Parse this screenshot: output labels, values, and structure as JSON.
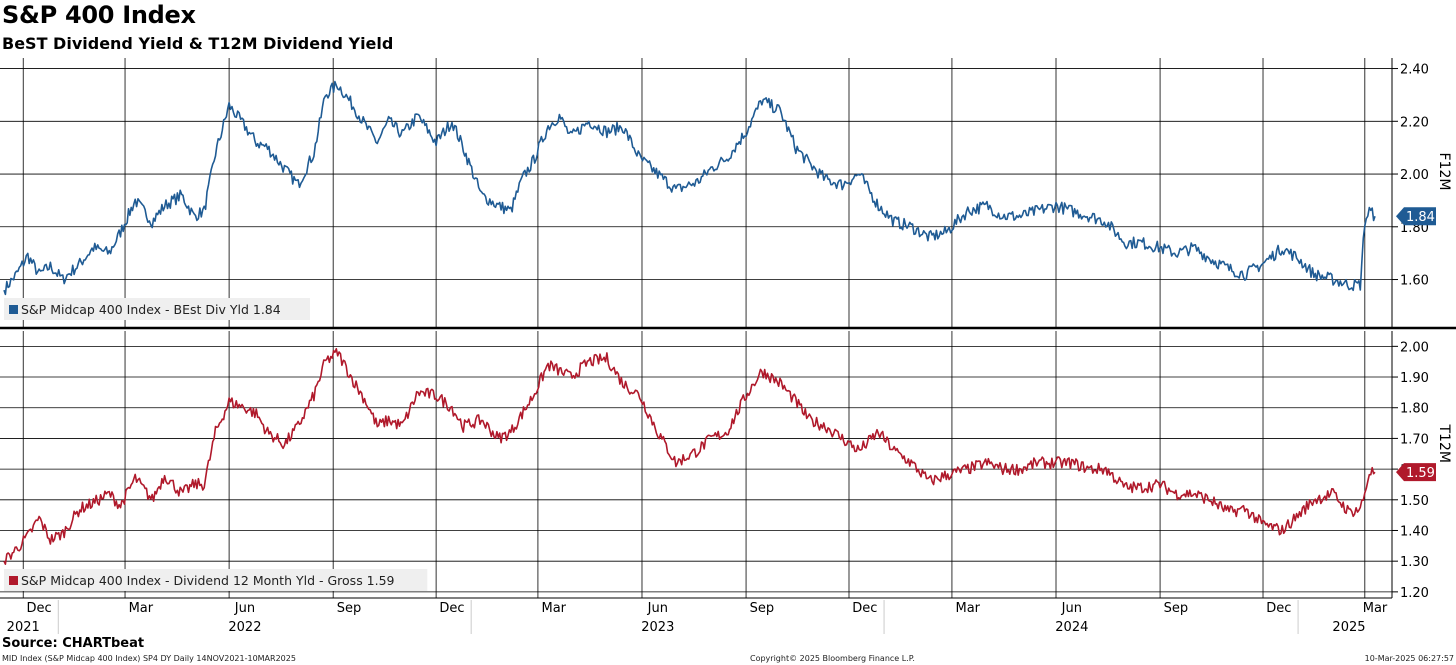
{
  "header": {
    "title": "S&P 400 Index",
    "subtitle": "BeST Dividend Yield & T12M Dividend Yield"
  },
  "footer": {
    "source": "Source: CHARTbeat",
    "left": "MID Index (S&P Midcap 400 Index) SP4 DY  Daily 14NOV2021-10MAR2025",
    "center": "Copyright© 2025 Bloomberg Finance L.P.",
    "right": "10-Mar-2025 06:27:57"
  },
  "colors": {
    "blue": "#1f5b94",
    "red": "#b0192b",
    "grid": "#000000"
  },
  "chart_data": [
    {
      "type": "line",
      "panel": "top",
      "axis_title": "F12M",
      "ylim": [
        1.42,
        2.44
      ],
      "yticks": [
        "2.40",
        "2.20",
        "2.00",
        "1.80",
        "1.60"
      ],
      "legend": "S&P Midcap 400 Index - BEst Div Yld 1.84",
      "last_value_label": "1.84",
      "series": [
        {
          "name": "S&P Midcap 400 Index - BEst Div Yld",
          "color": "#1f5b94",
          "x": [
            "2021-11-14",
            "2021-11-25",
            "2021-12-05",
            "2021-12-15",
            "2021-12-25",
            "2022-01-05",
            "2022-01-20",
            "2022-02-01",
            "2022-02-15",
            "2022-02-25",
            "2022-03-10",
            "2022-03-25",
            "2022-04-05",
            "2022-04-20",
            "2022-05-01",
            "2022-05-10",
            "2022-05-20",
            "2022-06-01",
            "2022-06-15",
            "2022-06-25",
            "2022-07-05",
            "2022-07-20",
            "2022-08-01",
            "2022-08-15",
            "2022-08-25",
            "2022-09-05",
            "2022-09-20",
            "2022-09-30",
            "2022-10-10",
            "2022-10-20",
            "2022-11-01",
            "2022-11-15",
            "2022-12-01",
            "2022-12-15",
            "2022-12-25",
            "2023-01-10",
            "2023-01-25",
            "2023-02-05",
            "2023-02-15",
            "2023-02-25",
            "2023-03-10",
            "2023-03-20",
            "2023-03-30",
            "2023-04-15",
            "2023-05-01",
            "2023-05-15",
            "2023-05-30",
            "2023-06-15",
            "2023-07-01",
            "2023-07-20",
            "2023-08-01",
            "2023-08-15",
            "2023-09-01",
            "2023-09-15",
            "2023-10-01",
            "2023-10-15",
            "2023-10-27",
            "2023-11-10",
            "2023-11-25",
            "2023-12-10",
            "2023-12-27",
            "2024-01-10",
            "2024-01-25",
            "2024-02-10",
            "2024-02-25",
            "2024-03-15",
            "2024-04-01",
            "2024-04-15",
            "2024-05-01",
            "2024-05-15",
            "2024-06-01",
            "2024-06-15",
            "2024-07-01",
            "2024-07-15",
            "2024-08-01",
            "2024-08-15",
            "2024-09-01",
            "2024-09-15",
            "2024-10-01",
            "2024-10-15",
            "2024-11-01",
            "2024-11-15",
            "2024-12-01",
            "2024-12-18",
            "2025-01-01",
            "2025-01-15",
            "2025-02-01",
            "2025-02-15",
            "2025-02-25",
            "2025-03-01",
            "2025-03-05",
            "2025-03-10"
          ],
          "y": [
            1.56,
            1.62,
            1.69,
            1.62,
            1.65,
            1.6,
            1.66,
            1.72,
            1.7,
            1.78,
            1.9,
            1.82,
            1.88,
            1.92,
            1.84,
            1.86,
            2.08,
            2.26,
            2.18,
            2.12,
            2.1,
            2.02,
            1.96,
            2.08,
            2.3,
            2.34,
            2.25,
            2.18,
            2.12,
            2.2,
            2.15,
            2.22,
            2.12,
            2.2,
            2.1,
            1.92,
            1.88,
            1.86,
            1.98,
            2.05,
            2.18,
            2.22,
            2.14,
            2.2,
            2.16,
            2.18,
            2.06,
            2.0,
            1.94,
            1.97,
            2.02,
            2.06,
            2.16,
            2.28,
            2.24,
            2.1,
            2.04,
            1.98,
            1.96,
            2.0,
            1.88,
            1.82,
            1.8,
            1.76,
            1.78,
            1.86,
            1.88,
            1.84,
            1.84,
            1.86,
            1.88,
            1.86,
            1.84,
            1.82,
            1.74,
            1.74,
            1.72,
            1.7,
            1.72,
            1.68,
            1.64,
            1.62,
            1.66,
            1.72,
            1.68,
            1.62,
            1.6,
            1.58,
            1.58,
            1.82,
            1.86,
            1.84
          ]
        }
      ]
    },
    {
      "type": "line",
      "panel": "bottom",
      "axis_title": "T12M",
      "ylim": [
        1.18,
        2.05
      ],
      "yticks": [
        "2.00",
        "1.90",
        "1.80",
        "1.70",
        "1.60",
        "1.50",
        "1.40",
        "1.30",
        "1.20"
      ],
      "legend": "S&P Midcap 400 Index - Dividend 12 Month Yld - Gross 1.59",
      "last_value_label": "1.59",
      "series": [
        {
          "name": "S&P Midcap 400 Index - Dividend 12 Month Yld - Gross",
          "color": "#b0192b",
          "x": [
            "2021-11-14",
            "2021-11-25",
            "2021-12-05",
            "2021-12-15",
            "2021-12-25",
            "2022-01-05",
            "2022-01-20",
            "2022-02-01",
            "2022-02-15",
            "2022-02-25",
            "2022-03-10",
            "2022-03-25",
            "2022-04-05",
            "2022-04-20",
            "2022-05-01",
            "2022-05-10",
            "2022-05-20",
            "2022-06-01",
            "2022-06-15",
            "2022-06-25",
            "2022-07-05",
            "2022-07-20",
            "2022-08-01",
            "2022-08-15",
            "2022-08-25",
            "2022-09-05",
            "2022-09-20",
            "2022-09-30",
            "2022-10-10",
            "2022-10-20",
            "2022-11-01",
            "2022-11-15",
            "2022-12-01",
            "2022-12-15",
            "2022-12-25",
            "2023-01-10",
            "2023-01-25",
            "2023-02-05",
            "2023-02-15",
            "2023-02-25",
            "2023-03-10",
            "2023-03-20",
            "2023-03-30",
            "2023-04-15",
            "2023-05-01",
            "2023-05-15",
            "2023-05-30",
            "2023-06-15",
            "2023-07-01",
            "2023-07-20",
            "2023-08-01",
            "2023-08-15",
            "2023-09-01",
            "2023-09-15",
            "2023-10-01",
            "2023-10-15",
            "2023-10-27",
            "2023-11-10",
            "2023-11-25",
            "2023-12-10",
            "2023-12-27",
            "2024-01-10",
            "2024-01-25",
            "2024-02-10",
            "2024-02-25",
            "2024-03-15",
            "2024-04-01",
            "2024-04-15",
            "2024-05-01",
            "2024-05-15",
            "2024-06-01",
            "2024-06-15",
            "2024-07-01",
            "2024-07-15",
            "2024-08-01",
            "2024-08-15",
            "2024-09-01",
            "2024-09-15",
            "2024-10-01",
            "2024-10-15",
            "2024-11-01",
            "2024-11-15",
            "2024-12-01",
            "2024-12-18",
            "2025-01-01",
            "2025-01-15",
            "2025-02-01",
            "2025-02-15",
            "2025-02-25",
            "2025-03-01",
            "2025-03-05",
            "2025-03-10"
          ],
          "y": [
            1.3,
            1.34,
            1.38,
            1.44,
            1.37,
            1.39,
            1.47,
            1.49,
            1.52,
            1.48,
            1.57,
            1.5,
            1.58,
            1.52,
            1.55,
            1.55,
            1.72,
            1.82,
            1.8,
            1.78,
            1.72,
            1.68,
            1.74,
            1.84,
            1.95,
            1.98,
            1.88,
            1.82,
            1.74,
            1.76,
            1.74,
            1.85,
            1.84,
            1.8,
            1.74,
            1.76,
            1.7,
            1.72,
            1.78,
            1.84,
            1.94,
            1.92,
            1.9,
            1.95,
            1.96,
            1.88,
            1.84,
            1.72,
            1.62,
            1.66,
            1.7,
            1.72,
            1.84,
            1.92,
            1.88,
            1.82,
            1.76,
            1.74,
            1.7,
            1.66,
            1.72,
            1.66,
            1.62,
            1.56,
            1.58,
            1.6,
            1.62,
            1.6,
            1.6,
            1.62,
            1.62,
            1.62,
            1.6,
            1.6,
            1.54,
            1.54,
            1.55,
            1.52,
            1.52,
            1.5,
            1.46,
            1.47,
            1.42,
            1.4,
            1.45,
            1.5,
            1.52,
            1.46,
            1.47,
            1.52,
            1.59,
            1.59
          ]
        }
      ]
    }
  ],
  "x_axis": {
    "months": [
      {
        "label": "Dec",
        "date": "2021-12-15"
      },
      {
        "label": "Mar",
        "date": "2022-03-15"
      },
      {
        "label": "Jun",
        "date": "2022-06-15"
      },
      {
        "label": "Sep",
        "date": "2022-09-15"
      },
      {
        "label": "Dec",
        "date": "2022-12-15"
      },
      {
        "label": "Mar",
        "date": "2023-03-15"
      },
      {
        "label": "Jun",
        "date": "2023-06-15"
      },
      {
        "label": "Sep",
        "date": "2023-09-15"
      },
      {
        "label": "Dec",
        "date": "2023-12-15"
      },
      {
        "label": "Mar",
        "date": "2024-03-15"
      },
      {
        "label": "Jun",
        "date": "2024-06-15"
      },
      {
        "label": "Sep",
        "date": "2024-09-15"
      },
      {
        "label": "Dec",
        "date": "2024-12-15"
      },
      {
        "label": "Mar",
        "date": "2025-03-10"
      }
    ],
    "years": [
      {
        "label": "2021",
        "date": "2021-12-01"
      },
      {
        "label": "2022",
        "date": "2022-06-15"
      },
      {
        "label": "2023",
        "date": "2023-06-15"
      },
      {
        "label": "2024",
        "date": "2024-06-15"
      },
      {
        "label": "2025",
        "date": "2025-02-15"
      }
    ],
    "year_boundaries": [
      "2022-01-01",
      "2023-01-01",
      "2024-01-01",
      "2025-01-01"
    ],
    "grid_dates": [
      "2021-12-01",
      "2022-03-01",
      "2022-06-01",
      "2022-09-01",
      "2022-12-01",
      "2023-03-01",
      "2023-06-01",
      "2023-09-01",
      "2023-12-01",
      "2024-03-01",
      "2024-06-01",
      "2024-09-01",
      "2024-12-01",
      "2025-03-01"
    ],
    "start": "2021-11-14",
    "end": "2025-03-10"
  }
}
